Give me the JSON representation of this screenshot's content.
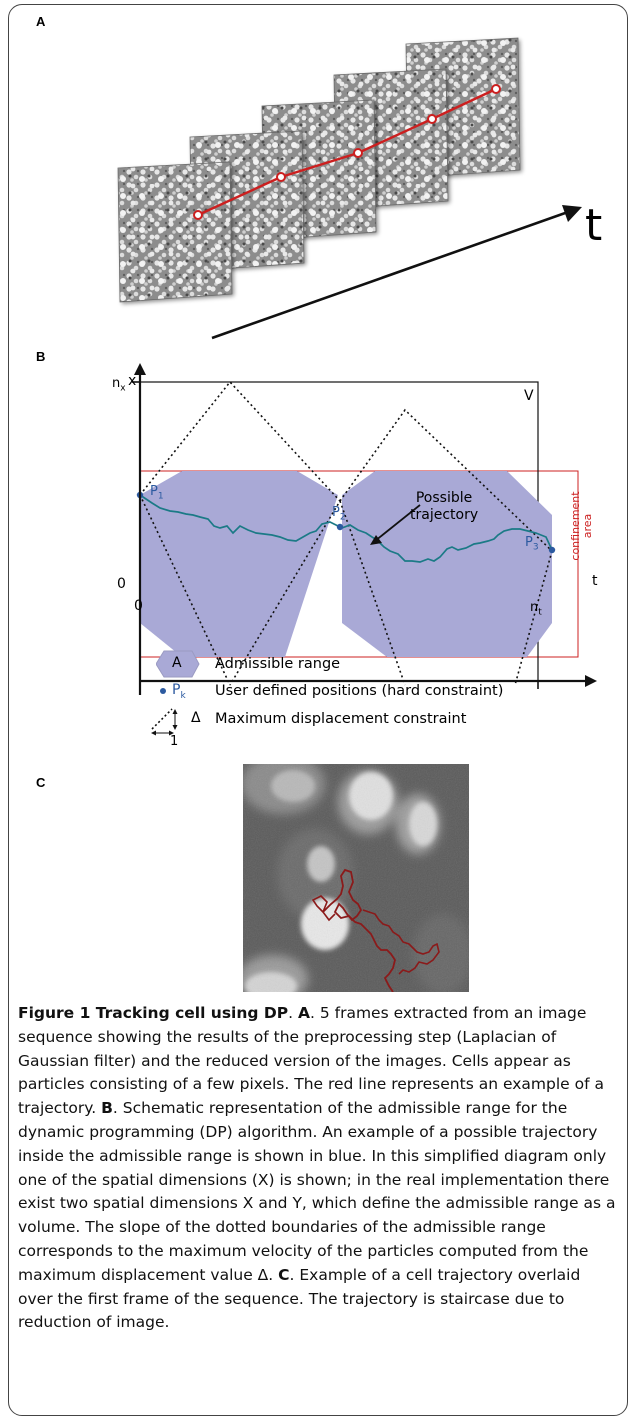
{
  "panels": {
    "a": {
      "label": "A",
      "t_axis_label": "t",
      "frame_count": 5
    },
    "b": {
      "label": "B",
      "x_axis_label": "x",
      "t_axis_label": "t",
      "n_x_label": "n",
      "n_x_sub": "x",
      "zero_y_label": "0",
      "zero_x_label": "0",
      "n_t_label": "n",
      "n_t_sub": "t",
      "volume_label": "V",
      "points": [
        {
          "base": "P",
          "sub": "1"
        },
        {
          "base": "P",
          "sub": "2"
        },
        {
          "base": "P",
          "sub": "3"
        }
      ],
      "annotation_line1": "Possible",
      "annotation_line2": "trajectory",
      "confinement_line1": "confinement",
      "confinement_line2": "area",
      "legend": {
        "range_symbol": "A",
        "range_label": "Admissible range",
        "point_symbol_base": "P",
        "point_symbol_sub": "k",
        "point_label": "User defined positions (hard constraint)",
        "delta_symbol": "Δ",
        "unit_symbol": "1",
        "displacement_label": "Maximum displacement constraint"
      }
    },
    "c": {
      "label": "C"
    }
  },
  "colors": {
    "admissible_fill": "#a9a9d6",
    "trajectory": "#1b7a86",
    "user_point": "#2c5aa0",
    "confinement": "#cc2222",
    "frame_trajectory": "#cc1f1f",
    "cell_trajectory": "#8b1a1a"
  },
  "caption": {
    "title": "Figure 1 Tracking cell using DP",
    "p1": ". ",
    "ref_a": "A",
    "text_a": ". 5 frames extracted from an image sequence showing the results of the preprocessing step (Laplacian of Gaussian filter) and the reduced version of the images. Cells appear as particles consisting of a few pixels. The red line represents an example of a trajectory. ",
    "ref_b": "B",
    "text_b": ". Schematic representation of the admissible range for the dynamic programming (DP) algorithm. An example of a possible trajectory inside the admissible range is shown in blue. In this simplified diagram only one of the spatial dimensions (X) is shown; in the real implementation there exist two spatial dimensions X and Y, which define the admissible range as a volume. The slope of the dotted boundaries of the admissible range corresponds to the maximum velocity of the particles computed from the maximum displacement value Δ. ",
    "ref_c": "C",
    "text_c": ". Example of a cell trajectory overlaid over the first frame of the sequence. The trajectory is staircase due to reduction of image."
  }
}
